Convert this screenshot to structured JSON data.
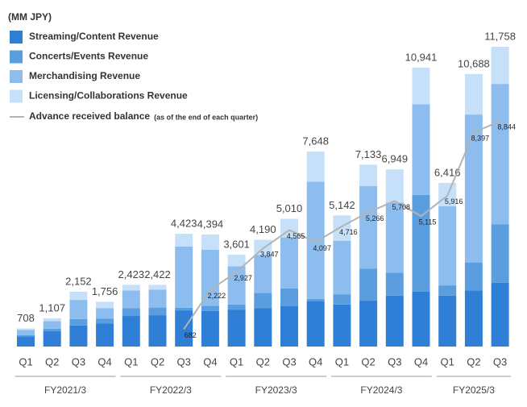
{
  "chart_data": {
    "type": "stacked-bar-line",
    "unit_label": "(MM JPY)",
    "groups": [
      {
        "name": "FY2021/3",
        "quarters": [
          "Q1",
          "Q2",
          "Q3",
          "Q4"
        ]
      },
      {
        "name": "FY2022/3",
        "quarters": [
          "Q1",
          "Q2",
          "Q3",
          "Q4"
        ]
      },
      {
        "name": "FY2023/3",
        "quarters": [
          "Q1",
          "Q2",
          "Q3",
          "Q4"
        ]
      },
      {
        "name": "FY2024/3",
        "quarters": [
          "Q1",
          "Q2",
          "Q3",
          "Q4"
        ]
      },
      {
        "name": "FY2025/3",
        "quarters": [
          "Q1",
          "Q2",
          "Q3"
        ]
      }
    ],
    "series": [
      {
        "name": "Streaming/Content Revenue",
        "color": "#2f7fd6",
        "values": [
          400,
          600,
          830,
          900,
          1200,
          1230,
          1420,
          1400,
          1450,
          1500,
          1580,
          1770,
          1650,
          1800,
          2000,
          2150,
          2000,
          2200,
          2500
        ]
      },
      {
        "name": "Concerts/Events Revenue",
        "color": "#5b9ee0",
        "values": [
          50,
          100,
          250,
          200,
          300,
          300,
          100,
          200,
          200,
          600,
          700,
          100,
          400,
          1250,
          900,
          3800,
          400,
          1100,
          2300
        ]
      },
      {
        "name": "Merchandising Revenue",
        "color": "#8cbdee",
        "values": [
          200,
          300,
          750,
          400,
          700,
          700,
          2400,
          2200,
          1500,
          1500,
          2000,
          4600,
          2100,
          3250,
          2750,
          3550,
          3100,
          5800,
          5500
        ]
      },
      {
        "name": "Licensing/Collaborations Revenue",
        "color": "#c5e0f8",
        "values": [
          58,
          107,
          322,
          256,
          223,
          192,
          503,
          594,
          451,
          590,
          730,
          1178,
          992,
          833,
          1299,
          1441,
          916,
          1588,
          1458
        ]
      }
    ],
    "totals": [
      708,
      1107,
      2152,
      1756,
      2423,
      2422,
      4423,
      4394,
      3601,
      4190,
      5010,
      7648,
      5142,
      7133,
      6949,
      10941,
      6416,
      10688,
      11758
    ],
    "totals_labels": [
      "708",
      "1,107",
      "2,152",
      "1,756",
      "2,423",
      "2,422",
      "4,423",
      "4,394",
      "3,601",
      "4,190",
      "5,010",
      "7,648",
      "5,142",
      "7,133",
      "6,949",
      "10,941",
      "6,416",
      "10,688",
      "11,758"
    ],
    "line": {
      "name": "Advance received balance",
      "name_note": "(as of the end of each quarter)",
      "color": "#b3b3b3",
      "values": [
        null,
        null,
        null,
        null,
        null,
        null,
        682,
        2222,
        2927,
        3847,
        4565,
        4097,
        4716,
        5266,
        5708,
        5115,
        5916,
        8397,
        8844
      ],
      "value_labels": [
        null,
        null,
        null,
        null,
        null,
        null,
        "682",
        "2,222",
        "2,927",
        "3,847",
        "4,565",
        "4,097",
        "4,716",
        "5,266",
        "5,708",
        "5,115",
        "5,916",
        "8,397",
        "8,844"
      ]
    }
  }
}
